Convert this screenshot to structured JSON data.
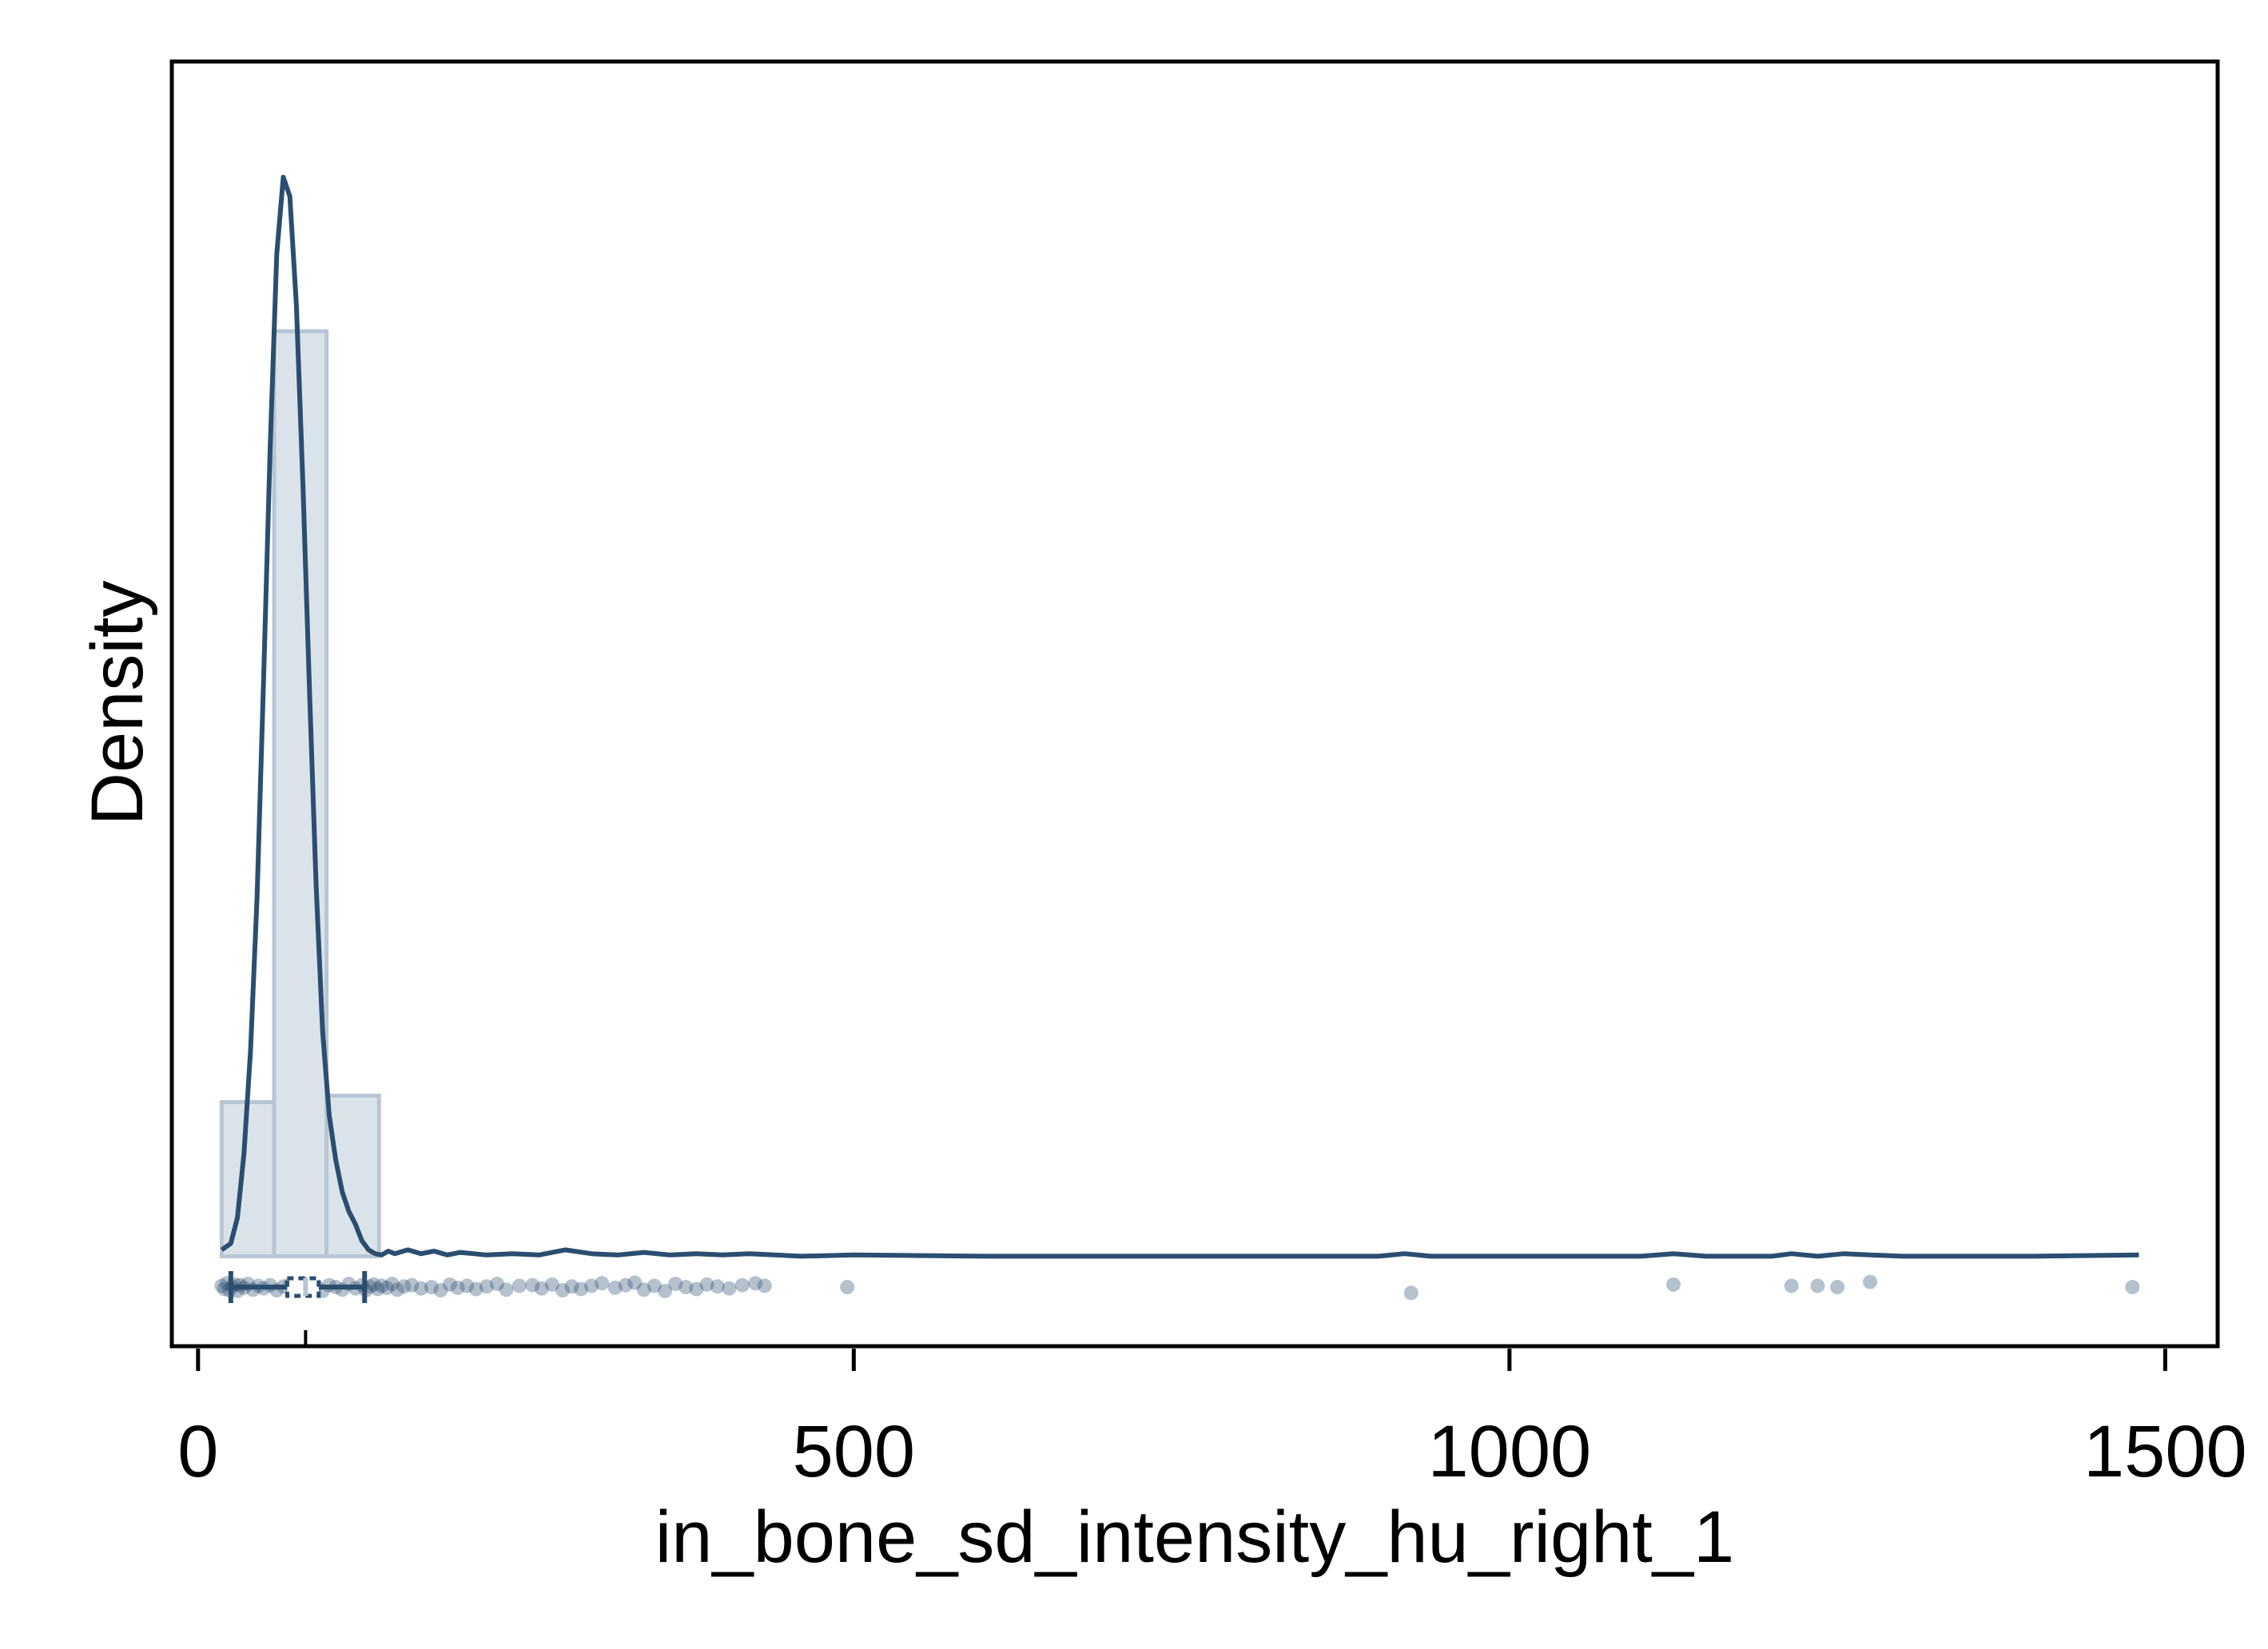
{
  "chart_data": {
    "type": "histogram",
    "xlabel": "in_bone_sd_intensity_hu_right_1",
    "ylabel": "Density",
    "xlim": [
      -20,
      1540
    ],
    "ylim": [
      -0.0007,
      0.0093
    ],
    "x_ticks": [
      0,
      500,
      1000,
      1500
    ],
    "x_tick_labels": [
      "0",
      "500",
      "1000",
      "1500"
    ],
    "y_ticks_shown": false,
    "grid": false,
    "legend": "none",
    "colors": {
      "line": "#2b4e70",
      "bar_fill": "#dbe3ea",
      "bar_edge": "#b8c6d3",
      "points": "#2b4e70"
    },
    "histogram": {
      "bin_width": 40,
      "bins": [
        {
          "x0": 18,
          "x1": 58,
          "density": 0.0012
        },
        {
          "x0": 58,
          "x1": 98,
          "density": 0.0072
        },
        {
          "x0": 98,
          "x1": 138,
          "density": 0.00125
        }
      ]
    },
    "density_curve": {
      "x": [
        18,
        25,
        30,
        35,
        40,
        45,
        50,
        55,
        60,
        65,
        70,
        75,
        80,
        85,
        90,
        95,
        100,
        105,
        110,
        115,
        120,
        125,
        130,
        135,
        140,
        145,
        150,
        160,
        170,
        180,
        190,
        200,
        210,
        220,
        240,
        260,
        280,
        300,
        320,
        340,
        360,
        380,
        400,
        420,
        440,
        460,
        500,
        600,
        700,
        800,
        900,
        920,
        940,
        1000,
        1100,
        1125,
        1150,
        1200,
        1215,
        1235,
        1255,
        1275,
        1300,
        1400,
        1480
      ],
      "y": [
        5e-05,
        0.0001,
        0.0003,
        0.0008,
        0.0016,
        0.0028,
        0.0045,
        0.0063,
        0.0078,
        0.0084,
        0.00825,
        0.0074,
        0.006,
        0.0044,
        0.0029,
        0.00175,
        0.0011,
        0.00075,
        0.0005,
        0.00035,
        0.00025,
        0.00012,
        5e-05,
        2e-05,
        1e-05,
        4e-05,
        2e-05,
        5e-05,
        2e-05,
        4e-05,
        1e-05,
        3e-05,
        2e-05,
        1e-05,
        2e-05,
        1e-05,
        5e-05,
        2e-05,
        1e-05,
        3e-05,
        1e-05,
        2e-05,
        1e-05,
        2e-05,
        1e-05,
        0.0,
        1e-05,
        0.0,
        0.0,
        0.0,
        0.0,
        2e-05,
        0.0,
        0.0,
        0.0,
        2e-05,
        0.0,
        0.0,
        2e-05,
        0.0,
        2e-05,
        1e-05,
        0.0,
        0.0,
        1e-05
      ]
    },
    "boxplot": {
      "whisker_low": 25,
      "q1": 68,
      "median": 82,
      "q3": 92,
      "whisker_high": 127
    },
    "points": {
      "x": [
        18,
        20,
        22,
        24,
        26,
        28,
        30,
        32,
        35,
        38,
        42,
        46,
        50,
        55,
        60,
        65,
        70,
        75,
        80,
        85,
        90,
        95,
        100,
        105,
        110,
        115,
        120,
        125,
        128,
        131,
        134,
        137,
        140,
        144,
        148,
        152,
        157,
        163,
        170,
        178,
        185,
        192,
        198,
        205,
        212,
        220,
        228,
        235,
        245,
        255,
        262,
        270,
        278,
        285,
        292,
        300,
        308,
        318,
        326,
        333,
        340,
        348,
        356,
        364,
        372,
        380,
        388,
        396,
        405,
        415,
        425,
        432,
        495,
        925,
        1125,
        1215,
        1235,
        1250,
        1275,
        1475
      ],
      "jitter": [
        0.2,
        -0.3,
        0.6,
        -0.5,
        0.1,
        0.4,
        -0.6,
        0.3,
        -0.1,
        0.5,
        -0.4,
        0.2,
        -0.2,
        0.3,
        -0.5,
        0.1,
        0.4,
        -0.3,
        0.6,
        -0.1,
        0.2,
        -0.6,
        0.3,
        0.0,
        -0.4,
        0.5,
        -0.2,
        0.3,
        -0.5,
        0.1,
        0.4,
        -0.3,
        0.2,
        -0.1,
        0.5,
        -0.4,
        0.1,
        0.3,
        -0.2,
        0.0,
        -0.5,
        0.4,
        -0.1,
        0.2,
        -0.3,
        0.1,
        0.5,
        -0.4,
        0.2,
        0.3,
        -0.2,
        0.4,
        -0.5,
        0.1,
        -0.3,
        0.2,
        0.6,
        -0.1,
        0.3,
        0.7,
        -0.4,
        0.2,
        -0.6,
        0.5,
        0.0,
        -0.3,
        0.4,
        0.1,
        -0.2,
        0.3,
        0.6,
        0.2,
        0.0,
        -0.9,
        0.4,
        0.2,
        0.2,
        0.0,
        0.8,
        0.0
      ]
    }
  }
}
